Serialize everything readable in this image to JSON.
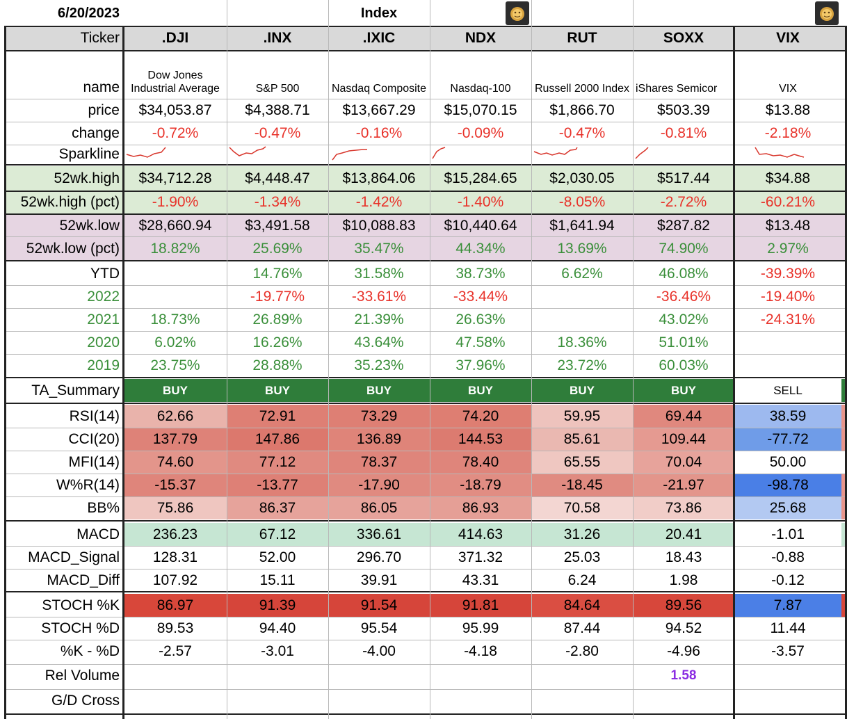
{
  "header": {
    "date": "6/20/2023",
    "group": "Index"
  },
  "tickers": [
    ".DJI",
    ".INX",
    ".IXIC",
    "NDX",
    "RUT",
    "SOXX",
    "VIX"
  ],
  "labels": {
    "ticker": "Ticker",
    "name": "name",
    "price": "price",
    "change": "change",
    "sparkline": "Sparkline",
    "high": "52wk.high",
    "high_pct": "52wk.high (pct)",
    "low": "52wk.low",
    "low_pct": "52wk.low (pct)",
    "ytd": "YTD",
    "y2022": "2022",
    "y2021": "2021",
    "y2020": "2020",
    "y2019": "2019",
    "ta": "TA_Summary",
    "rsi": "RSI(14)",
    "cci": "CCI(20)",
    "mfi": "MFI(14)",
    "wr": "W%R(14)",
    "bb": "BB%",
    "macd": "MACD",
    "macd_signal": "MACD_Signal",
    "macd_diff": "MACD_Diff",
    "stoch_k": "STOCH %K",
    "stoch_d": "STOCH %D",
    "k_minus_d": "%K - %D",
    "rel_volume": "Rel Volume",
    "gd_cross": "G/D Cross"
  },
  "names": [
    "Dow Jones Industrial Average",
    "S&P 500",
    "Nasdaq Composite",
    "Nasdaq-100",
    "Russell 2000 Index",
    "iShares Semicor",
    "VIX"
  ],
  "price": [
    "$34,053.87",
    "$4,388.71",
    "$13,667.29",
    "$15,070.15",
    "$1,866.70",
    "$503.39",
    "$13.88"
  ],
  "change": [
    "-0.72%",
    "-0.47%",
    "-0.16%",
    "-0.09%",
    "-0.47%",
    "-0.81%",
    "-2.18%"
  ],
  "high": [
    "$34,712.28",
    "$4,448.47",
    "$13,864.06",
    "$15,284.65",
    "$2,030.05",
    "$517.44",
    "$34.88"
  ],
  "high_pct": [
    "-1.90%",
    "-1.34%",
    "-1.42%",
    "-1.40%",
    "-8.05%",
    "-2.72%",
    "-60.21%"
  ],
  "low": [
    "$28,660.94",
    "$3,491.58",
    "$10,088.83",
    "$10,440.64",
    "$1,641.94",
    "$287.82",
    "$13.48"
  ],
  "low_pct": [
    "18.82%",
    "25.69%",
    "35.47%",
    "44.34%",
    "13.69%",
    "74.90%",
    "2.97%"
  ],
  "ytd": [
    "",
    "14.76%",
    "31.58%",
    "38.73%",
    "6.62%",
    "46.08%",
    "-39.39%"
  ],
  "y2022": [
    "",
    "-19.77%",
    "-33.61%",
    "-33.44%",
    "",
    "-36.46%",
    "-19.40%"
  ],
  "y2021": [
    "18.73%",
    "26.89%",
    "21.39%",
    "26.63%",
    "",
    "43.02%",
    "-24.31%"
  ],
  "y2020": [
    "6.02%",
    "16.26%",
    "43.64%",
    "47.58%",
    "18.36%",
    "51.01%",
    ""
  ],
  "y2019": [
    "23.75%",
    "28.88%",
    "35.23%",
    "37.96%",
    "23.72%",
    "60.03%",
    ""
  ],
  "ta": [
    "BUY",
    "BUY",
    "BUY",
    "BUY",
    "BUY",
    "BUY",
    "SELL"
  ],
  "rsi": [
    "62.66",
    "72.91",
    "73.29",
    "74.20",
    "59.95",
    "69.44",
    "38.59"
  ],
  "cci": [
    "137.79",
    "147.86",
    "136.89",
    "144.53",
    "85.61",
    "109.44",
    "-77.72"
  ],
  "mfi": [
    "74.60",
    "77.12",
    "78.37",
    "78.40",
    "65.55",
    "70.04",
    "50.00"
  ],
  "wr": [
    "-15.37",
    "-13.77",
    "-17.90",
    "-18.79",
    "-18.45",
    "-21.97",
    "-98.78"
  ],
  "bb": [
    "75.86",
    "86.37",
    "86.05",
    "86.93",
    "70.58",
    "73.86",
    "25.68"
  ],
  "macd": [
    "236.23",
    "67.12",
    "336.61",
    "414.63",
    "31.26",
    "20.41",
    "-1.01"
  ],
  "macd_signal": [
    "128.31",
    "52.00",
    "296.70",
    "371.32",
    "25.03",
    "18.43",
    "-0.88"
  ],
  "macd_diff": [
    "107.92",
    "15.11",
    "39.91",
    "43.31",
    "6.24",
    "1.98",
    "-0.12"
  ],
  "stoch_k": [
    "86.97",
    "91.39",
    "91.54",
    "91.81",
    "84.64",
    "89.56",
    "7.87"
  ],
  "stoch_d": [
    "89.53",
    "94.40",
    "95.54",
    "95.99",
    "87.44",
    "94.52",
    "11.44"
  ],
  "k_minus_d": [
    "-2.57",
    "-3.01",
    "-4.00",
    "-4.18",
    "-2.80",
    "-4.96",
    "-3.57"
  ],
  "rel_volume": [
    "",
    "",
    "",
    "",
    "",
    "1.58",
    ""
  ],
  "colors": {
    "red_text": "#e8322a",
    "green_text": "#3a8f3a",
    "purple_text": "#8a2be2",
    "buy_bg": "#2f7d3a",
    "high_band": "#dcebd5",
    "low_band": "#e6d5e2",
    "macd_green": "#c6e6d3"
  },
  "indicator_bg": {
    "rsi": [
      "#e9b3ab",
      "#de7f74",
      "#de7f74",
      "#de7e72",
      "#eec3bd",
      "#e0887e",
      "#9db9ef"
    ],
    "cci": [
      "#de8278",
      "#dc786d",
      "#df8479",
      "#dc7b70",
      "#eab8b1",
      "#e59a91",
      "#6f9ce8"
    ],
    "mfi": [
      "#e3958b",
      "#e08a80",
      "#df857b",
      "#df857b",
      "#efc7c1",
      "#e7a39b",
      "#ffffff"
    ],
    "wr": [
      "#df857b",
      "#de8076",
      "#e08a80",
      "#e18d83",
      "#e08b81",
      "#e3958b",
      "#4a7fe6"
    ],
    "bb": [
      "#efc6c0",
      "#e6a39b",
      "#e6a39b",
      "#e59f96",
      "#f3d6d2",
      "#f1cdc8",
      "#b3c9f2"
    ],
    "stoch_k": [
      "#d8473a",
      "#d6453a",
      "#d6453a",
      "#d6453a",
      "#da4e42",
      "#d7473b",
      "#4b7fe6"
    ]
  }
}
